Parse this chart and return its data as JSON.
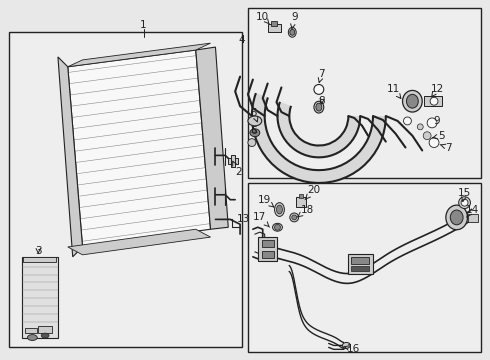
{
  "bg_color": "#e8e8e8",
  "box_color": "#eeeeee",
  "line_color": "#222222",
  "dark_gray": "#555555",
  "mid_gray": "#888888",
  "light_gray": "#cccccc",
  "white": "#f8f8f8"
}
